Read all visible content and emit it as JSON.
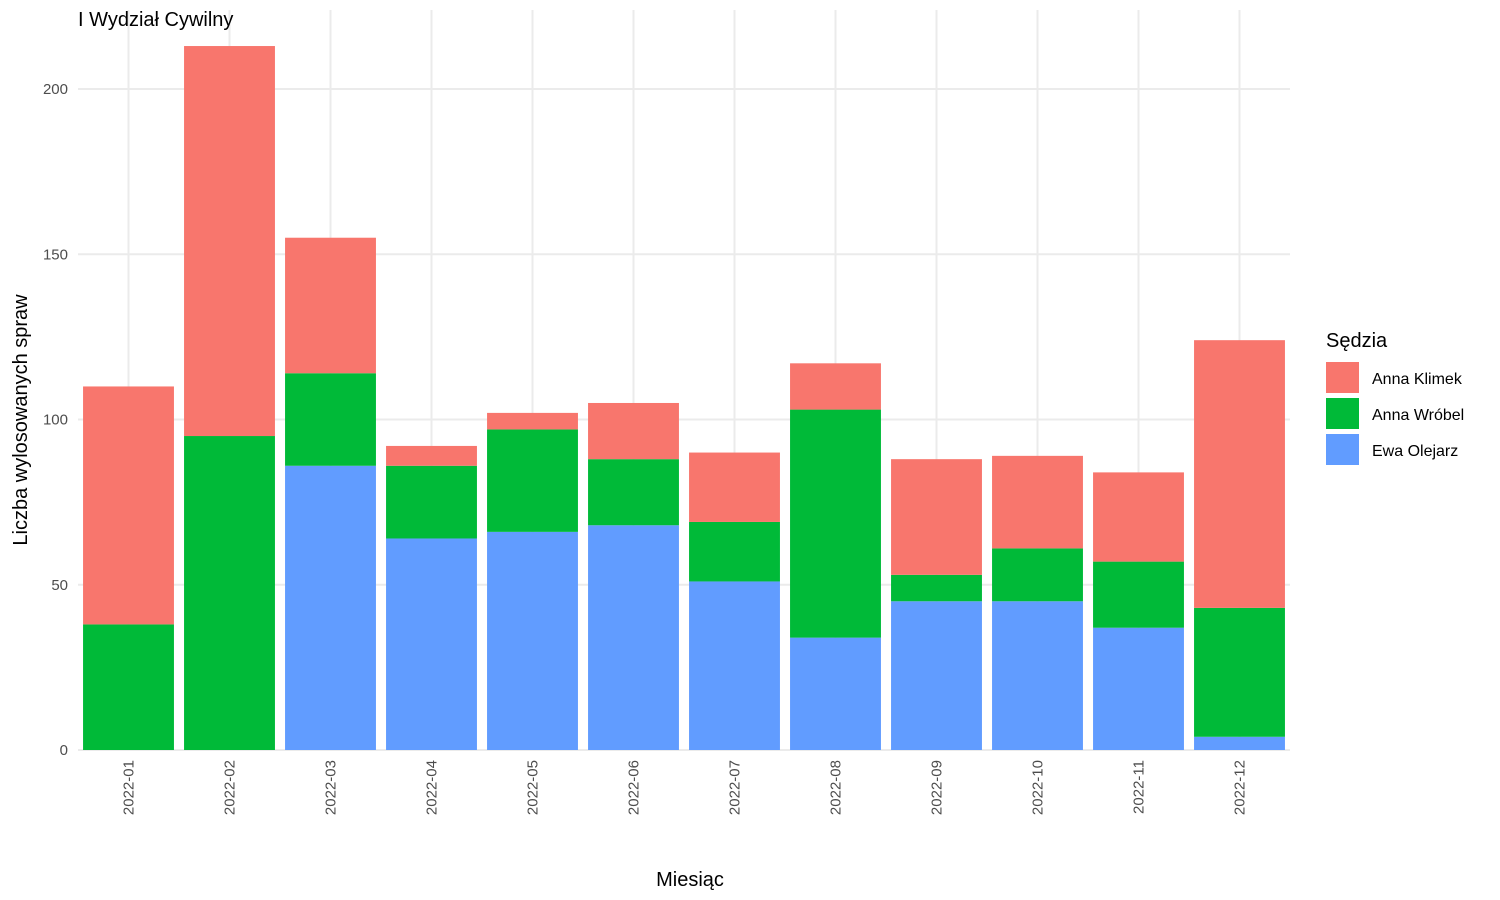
{
  "chart_data": {
    "type": "bar",
    "stacked": true,
    "title": "I Wydział Cywilny",
    "xlabel": "Miesiąc",
    "ylabel": "Liczba wylosowanych spraw",
    "categories": [
      "2022-01",
      "2022-02",
      "2022-03",
      "2022-04",
      "2022-05",
      "2022-06",
      "2022-07",
      "2022-08",
      "2022-09",
      "2022-10",
      "2022-11",
      "2022-12"
    ],
    "series": [
      {
        "name": "Ewa Olejarz",
        "color": "#619CFF",
        "values": [
          0,
          0,
          86,
          64,
          66,
          68,
          51,
          34,
          45,
          45,
          37,
          4
        ]
      },
      {
        "name": "Anna Wróbel",
        "color": "#00BA38",
        "values": [
          38,
          95,
          28,
          22,
          31,
          20,
          18,
          69,
          8,
          16,
          20,
          39
        ]
      },
      {
        "name": "Anna Klimek",
        "color": "#F8766D",
        "values": [
          72,
          118,
          41,
          6,
          5,
          17,
          21,
          14,
          35,
          28,
          27,
          81
        ]
      }
    ],
    "ylim": [
      0,
      215
    ],
    "yticks": [
      0,
      50,
      100,
      150,
      200
    ],
    "grid": true,
    "legend": {
      "title": "Sędzia",
      "position": "right",
      "order": [
        "Anna Klimek",
        "Anna Wróbel",
        "Ewa Olejarz"
      ]
    }
  }
}
